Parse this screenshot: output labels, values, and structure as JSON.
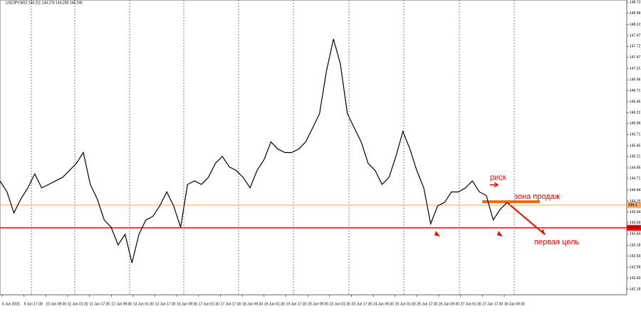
{
  "chart_data": {
    "type": "line",
    "title": "USDJPY,M15  144.211 144.276 144.208 144.246",
    "color": "#000000",
    "values": [
      144.65,
      144.4,
      143.92,
      144.24,
      144.49,
      144.81,
      144.49,
      144.57,
      144.65,
      144.73,
      144.89,
      145.05,
      145.3,
      144.57,
      144.24,
      143.76,
      143.59,
      143.19,
      143.43,
      142.78,
      143.43,
      143.76,
      143.84,
      144.08,
      144.4,
      144.08,
      143.59,
      144.57,
      144.65,
      144.57,
      144.73,
      145.05,
      145.21,
      144.97,
      144.89,
      144.73,
      144.49,
      144.89,
      145.13,
      145.54,
      145.38,
      145.3,
      145.3,
      145.38,
      145.54,
      145.86,
      146.19,
      147.16,
      147.89,
      147.32,
      146.19,
      145.86,
      145.54,
      145.05,
      144.89,
      144.57,
      144.73,
      145.21,
      145.78,
      145.38,
      144.89,
      144.49,
      143.67,
      144.08,
      144.16,
      144.4,
      144.4,
      144.49,
      144.65,
      144.4,
      144.32,
      143.76,
      144.0,
      144.16
    ],
    "ylim": [
      142.05,
      148.78
    ],
    "yticks": [
      142.18,
      142.43,
      142.68,
      142.93,
      143.18,
      143.44,
      143.69,
      143.94,
      144.19,
      144.44,
      144.71,
      144.95,
      145.21,
      145.45,
      145.71,
      145.96,
      146.21,
      146.46,
      146.71,
      146.96,
      147.21,
      147.47,
      147.72,
      147.97,
      148.22,
      148.48,
      148.73
    ],
    "time_labels": [
      "6 Jun 2025",
      "9 Jun 17:30",
      "10 Jun 09:30",
      "11 Jun 01:30",
      "11 Jun 17:30",
      "12 Jun 09:30",
      "13 Jun 01:30",
      "13 Jun 17:30",
      "16 Jun 09:30",
      "17 Jun 01:30",
      "17 Jun 17:30",
      "18 Jun 09:30",
      "19 Jun 01:30",
      "19 Jun 17:30",
      "20 Jun 09:30",
      "23 Jun 01:30",
      "23 Jun 17:30",
      "24 Jun 09:30",
      "25 Jun 01:30",
      "25 Jun 17:30",
      "26 Jun 09:30",
      "27 Jun 01:30",
      "27 Jun 17:30",
      "30 Jun 09:30"
    ],
    "levels": [
      {
        "value": 144.1,
        "color": "#f4a460"
      },
      {
        "value": 143.58,
        "color": "#ff0000"
      }
    ],
    "annotations": [
      "риск",
      "зона продаж",
      "первая цель"
    ]
  }
}
